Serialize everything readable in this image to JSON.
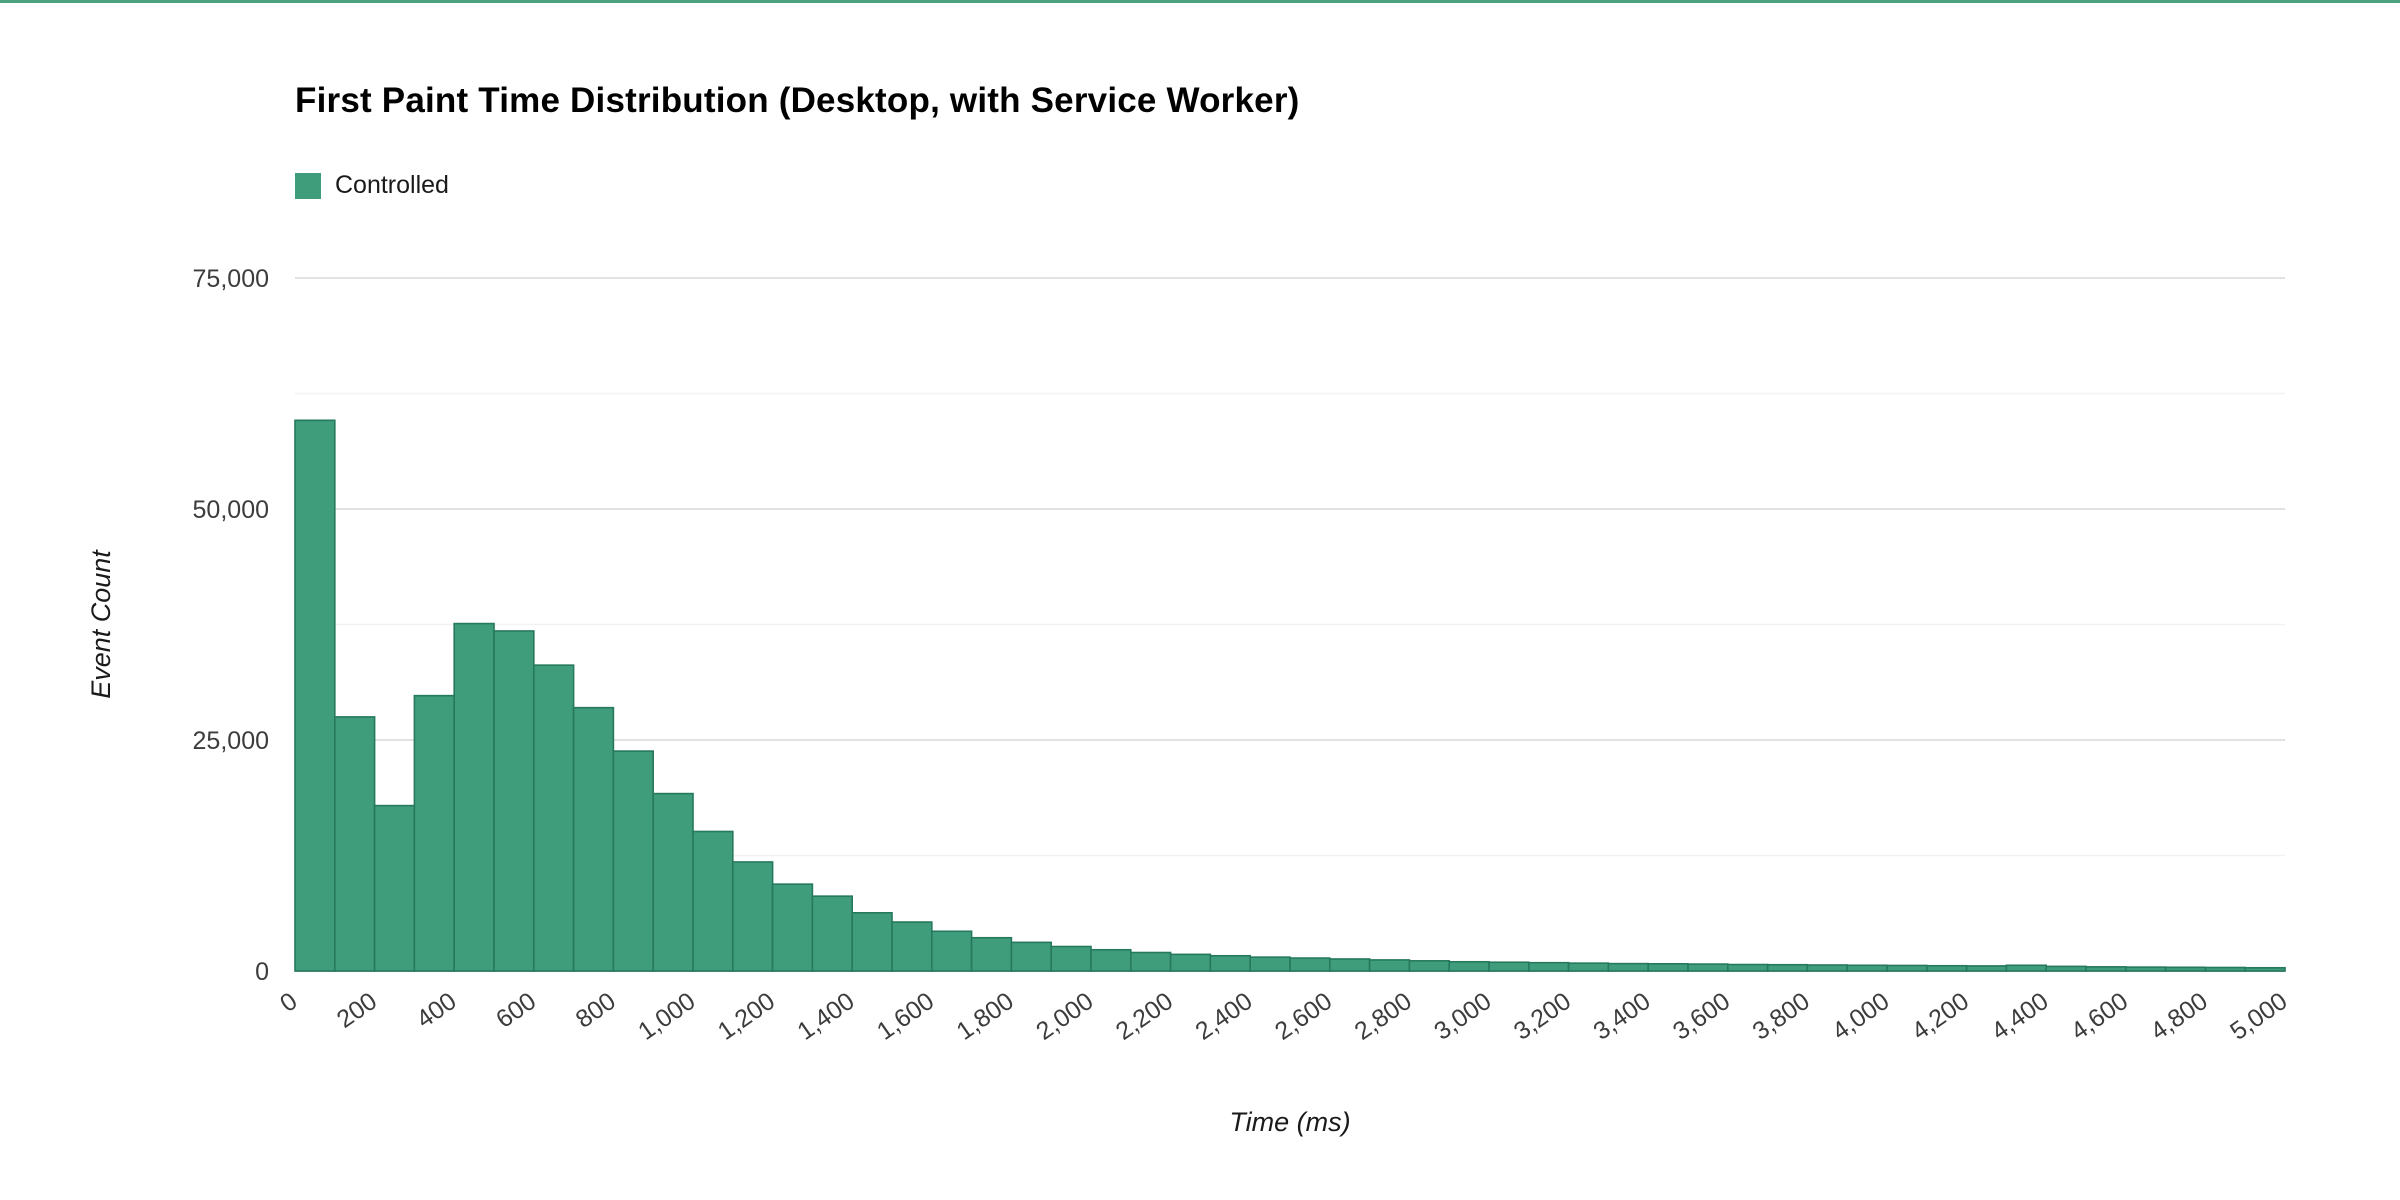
{
  "page": {
    "top_border_color": "#4aa17e",
    "background": "#ffffff"
  },
  "chart_data": {
    "type": "bar",
    "title": "First Paint Time Distribution (Desktop, with Service Worker)",
    "xlabel": "Time (ms)",
    "ylabel": "Event Count",
    "legend": [
      {
        "label": "Controlled",
        "color": "#3f9d7c"
      }
    ],
    "bin_width_ms": 100,
    "x_range": [
      0,
      5000
    ],
    "x_tick_step": 200,
    "x_tick_labels": [
      "0",
      "200",
      "400",
      "600",
      "800",
      "1,000",
      "1,200",
      "1,400",
      "1,600",
      "1,800",
      "2,000",
      "2,200",
      "2,400",
      "2,600",
      "2,800",
      "3,000",
      "3,200",
      "3,400",
      "3,600",
      "3,800",
      "4,000",
      "4,200",
      "4,400",
      "4,600",
      "4,800",
      "5,000"
    ],
    "y_axis": {
      "max": 75000,
      "major_ticks": [
        0,
        25000,
        50000,
        75000
      ],
      "y_tick_labels": [
        "0",
        "25,000",
        "50,000",
        "75,000"
      ],
      "minor_ticks": [
        12500,
        37500,
        62500
      ]
    },
    "values": [
      59600,
      27500,
      17900,
      29800,
      37600,
      36800,
      33100,
      28500,
      23800,
      19200,
      15100,
      11800,
      9400,
      8100,
      6300,
      5300,
      4300,
      3600,
      3100,
      2650,
      2300,
      2000,
      1800,
      1650,
      1500,
      1400,
      1300,
      1200,
      1100,
      1000,
      950,
      900,
      850,
      800,
      780,
      750,
      700,
      680,
      650,
      620,
      600,
      570,
      550,
      620,
      500,
      450,
      420,
      400,
      380,
      350
    ],
    "grid": true,
    "legend_position": "top-left",
    "colors": {
      "bar_fill": "#3f9d7c",
      "bar_stroke": "#26795d",
      "major_gridline": "#e2e2e2",
      "minor_gridline": "#f2f2f2",
      "baseline": "#b3b3b3",
      "tick_label": "#3c3c3c",
      "axis_title": "#1a1a1a"
    }
  }
}
